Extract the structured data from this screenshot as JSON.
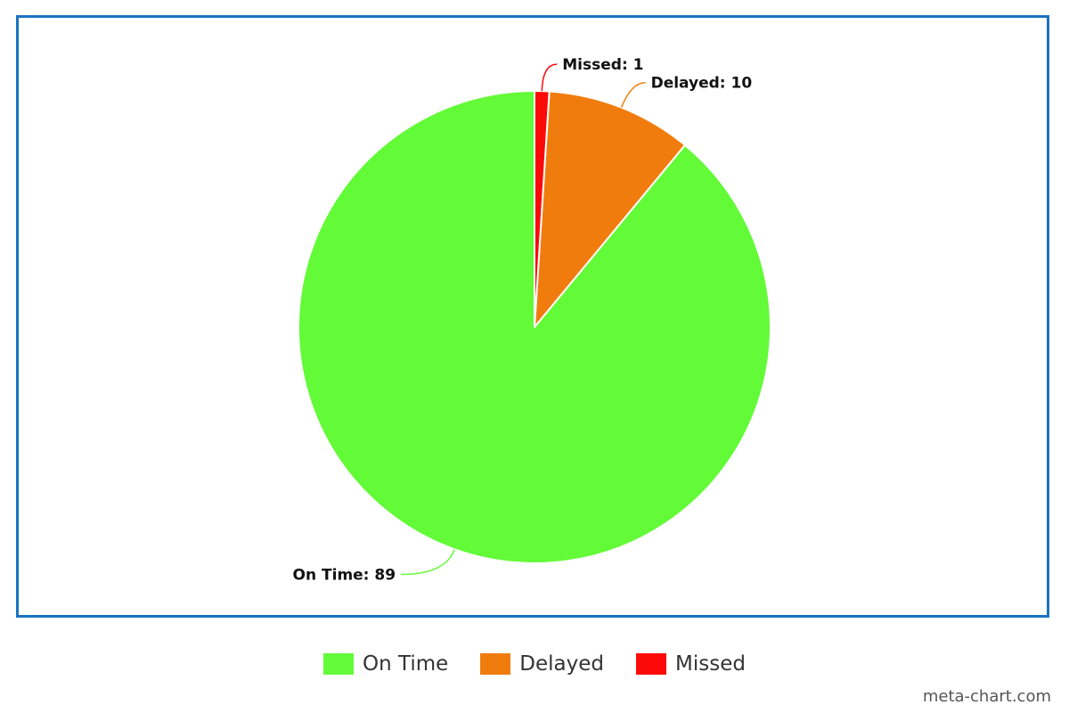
{
  "chart_data": {
    "type": "pie",
    "title": "",
    "slices": [
      {
        "name": "On Time",
        "value": 89,
        "color": "#63fa38",
        "label": "On Time: 89"
      },
      {
        "name": "Delayed",
        "value": 10,
        "color": "#f17c0e",
        "label": "Delayed: 10"
      },
      {
        "name": "Missed",
        "value": 1,
        "color": "#fc0a0a",
        "label": "Missed: 1"
      }
    ],
    "legend": {
      "placement": "bottom-center",
      "items": [
        "On Time",
        "Delayed",
        "Missed"
      ]
    }
  },
  "footer": {
    "watermark": "meta-chart.com"
  }
}
